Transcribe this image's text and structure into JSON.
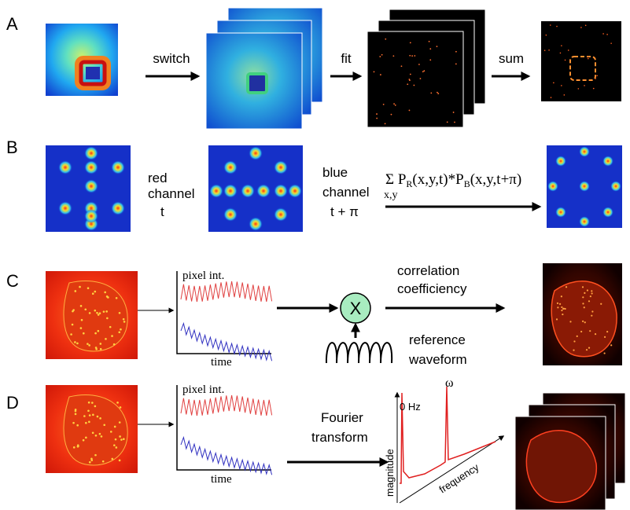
{
  "panels": [
    {
      "label": "A",
      "steps": [
        "switch",
        "fit",
        "sum"
      ]
    },
    {
      "label": "B",
      "red": [
        "red",
        "channel",
        "t"
      ],
      "blue": [
        "blue",
        "channel",
        "t + π"
      ],
      "equation": {
        "sigma": "Σ",
        "p1": "P",
        "sub1": "R",
        "args1": "(x,y,t)*P",
        "sub2": "B",
        "args2": "(x,y,t+π)",
        "under": "x,y"
      }
    },
    {
      "label": "C",
      "plot": {
        "ylabel": "pixel int.",
        "xlabel": "time"
      },
      "operator": "X",
      "output": [
        "correlation",
        "coefficiency"
      ],
      "reference": [
        "reference",
        "waveform"
      ]
    },
    {
      "label": "D",
      "plot": {
        "ylabel": "pixel int.",
        "xlabel": "time"
      },
      "step": [
        "Fourier",
        "transform"
      ],
      "spectrum": {
        "peak": "ω",
        "dc": "0 Hz",
        "ylabel": "magnitude",
        "xlabel": "frequency"
      }
    }
  ]
}
